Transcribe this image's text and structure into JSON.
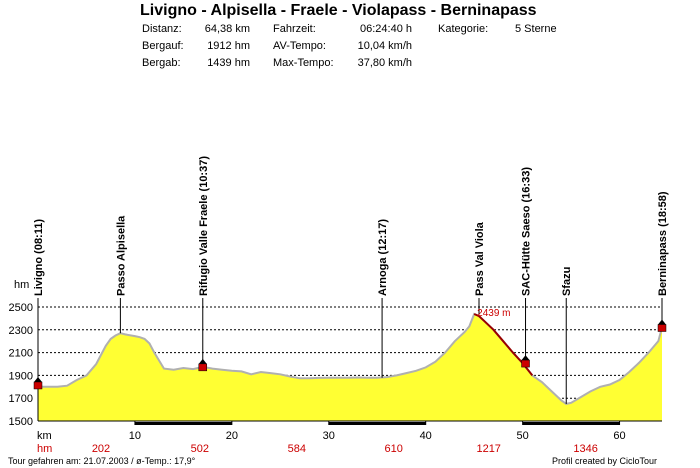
{
  "header": {
    "title": "Livigno - Alpisella - Fraele - Violapass - Berninapass",
    "stats": [
      {
        "label": "Distanz:",
        "value": "64,38 km"
      },
      {
        "label": "Bergauf:",
        "value": "1912 hm"
      },
      {
        "label": "Bergab:",
        "value": "1439 hm"
      },
      {
        "label": "Fahrzeit:",
        "value": "06:24:40 h"
      },
      {
        "label": "AV-Tempo:",
        "value": "10,04 km/h"
      },
      {
        "label": "Max-Tempo:",
        "value": "37,80 km/h"
      },
      {
        "label": "Kategorie:",
        "value": "5 Sterne"
      }
    ]
  },
  "footer": {
    "left": "Tour gefahren am: 21.07.2003  /  ø-Temp.: 17,9°",
    "right": "Profil created by CicloTour"
  },
  "colors": {
    "profile_fill": "#ffff33",
    "profile_line": "#b0b0b0",
    "climb_line": "#990000",
    "marker": "#cc0000",
    "hm_red": "#cc0000"
  },
  "chart_data": {
    "type": "area",
    "title": "Livigno - Alpisella - Fraele - Violapass - Berninapass",
    "xlabel": "km",
    "ylabel": "hm",
    "xlim": [
      0,
      64.38
    ],
    "ylim": [
      1500,
      2500
    ],
    "yticks": [
      1500,
      1700,
      1900,
      2100,
      2300,
      2500
    ],
    "xticks": [
      10,
      20,
      30,
      40,
      50,
      60
    ],
    "grid": true,
    "hm_row_label": "hm",
    "hm_row": [
      {
        "x": 6.5,
        "value": "202"
      },
      {
        "x": 16.7,
        "value": "502"
      },
      {
        "x": 26.7,
        "value": "584"
      },
      {
        "x": 36.7,
        "value": "610"
      },
      {
        "x": 46.5,
        "value": "1217"
      },
      {
        "x": 56.5,
        "value": "1346"
      }
    ],
    "peak_label": "2439 m",
    "peak": {
      "x": 45.0,
      "y": 2439
    },
    "waypoints": [
      {
        "name": "Livigno (08:11)",
        "x": 0.0,
        "y": 1816,
        "marker": true
      },
      {
        "name": "Passo Alpisella",
        "x": 8.5,
        "y": 2270,
        "marker": false
      },
      {
        "name": "Rifugio Valle Fraele (10:37)",
        "x": 17.0,
        "y": 1975,
        "marker": true
      },
      {
        "name": "Arnoga (12:17)",
        "x": 35.5,
        "y": 1880,
        "marker": false
      },
      {
        "name": "Pass Val Viola",
        "x": 45.5,
        "y": 2432,
        "marker": false
      },
      {
        "name": "SAC-Hütte Saeso (16:33)",
        "x": 50.3,
        "y": 2008,
        "marker": true
      },
      {
        "name": "Sfazu",
        "x": 54.5,
        "y": 1650,
        "marker": false
      },
      {
        "name": "Berninapass (18:58)",
        "x": 64.38,
        "y": 2320,
        "marker": true
      }
    ],
    "series": [
      {
        "values_x": [
          0,
          0.5,
          1,
          2,
          3,
          4,
          5,
          6,
          6.5,
          7,
          7.5,
          8,
          8.5,
          9,
          10,
          10.5,
          11,
          11.5,
          12,
          13,
          14,
          15,
          16,
          17,
          18,
          19,
          20,
          21,
          22,
          23,
          24,
          25,
          26,
          27,
          28,
          29,
          30,
          31,
          32,
          33,
          34,
          35,
          36,
          37,
          38,
          39,
          40,
          41,
          42,
          43,
          44,
          44.5,
          45,
          45.5,
          46,
          47,
          48,
          49,
          50,
          51,
          52,
          53,
          54,
          54.5,
          55,
          56,
          57,
          58,
          59,
          60,
          61,
          62,
          63,
          64,
          64.38
        ],
        "values_y": [
          1816,
          1800,
          1800,
          1800,
          1810,
          1860,
          1900,
          2000,
          2080,
          2160,
          2220,
          2250,
          2270,
          2260,
          2245,
          2235,
          2220,
          2180,
          2100,
          1960,
          1950,
          1965,
          1955,
          1975,
          1960,
          1950,
          1940,
          1935,
          1910,
          1930,
          1920,
          1910,
          1890,
          1875,
          1875,
          1878,
          1880,
          1880,
          1880,
          1882,
          1880,
          1880,
          1885,
          1900,
          1920,
          1940,
          1970,
          2020,
          2100,
          2200,
          2280,
          2330,
          2439,
          2420,
          2380,
          2300,
          2200,
          2100,
          2008,
          1900,
          1840,
          1760,
          1680,
          1650,
          1660,
          1710,
          1760,
          1800,
          1820,
          1860,
          1930,
          2010,
          2100,
          2200,
          2320
        ]
      }
    ]
  }
}
